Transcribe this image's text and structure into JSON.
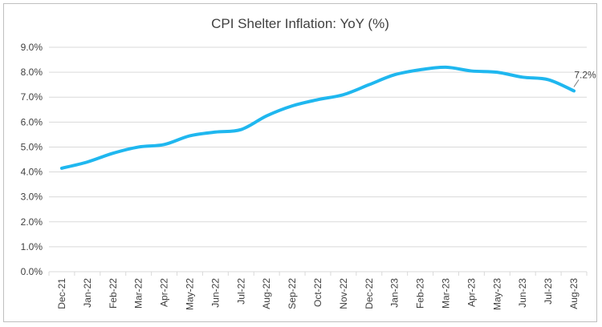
{
  "chart_data": {
    "type": "line",
    "title": "CPI Shelter Inflation: YoY (%)",
    "xlabel": "",
    "ylabel": "",
    "ylim": [
      0,
      9
    ],
    "y_ticks": [
      "0.0%",
      "1.0%",
      "2.0%",
      "3.0%",
      "4.0%",
      "5.0%",
      "6.0%",
      "7.0%",
      "8.0%",
      "9.0%"
    ],
    "grid": true,
    "legend": "none",
    "line_color": "#1fb7ef",
    "categories": [
      "Dec-21",
      "Jan-22",
      "Feb-22",
      "Mar-22",
      "Apr-22",
      "May-22",
      "Jun-22",
      "Jul-22",
      "Aug-22",
      "Sep-22",
      "Oct-22",
      "Nov-22",
      "Dec-22",
      "Jan-23",
      "Feb-23",
      "Mar-23",
      "Apr-23",
      "May-23",
      "Jun-23",
      "Jul-23",
      "Aug-23"
    ],
    "series": [
      {
        "values": [
          4.15,
          4.4,
          4.75,
          5.0,
          5.1,
          5.45,
          5.6,
          5.7,
          6.25,
          6.65,
          6.9,
          7.1,
          7.5,
          7.9,
          8.1,
          8.2,
          8.05,
          8.0,
          7.8,
          7.7,
          7.25
        ]
      }
    ],
    "annotation": {
      "category": "Aug-23",
      "text": "7.2%"
    }
  }
}
